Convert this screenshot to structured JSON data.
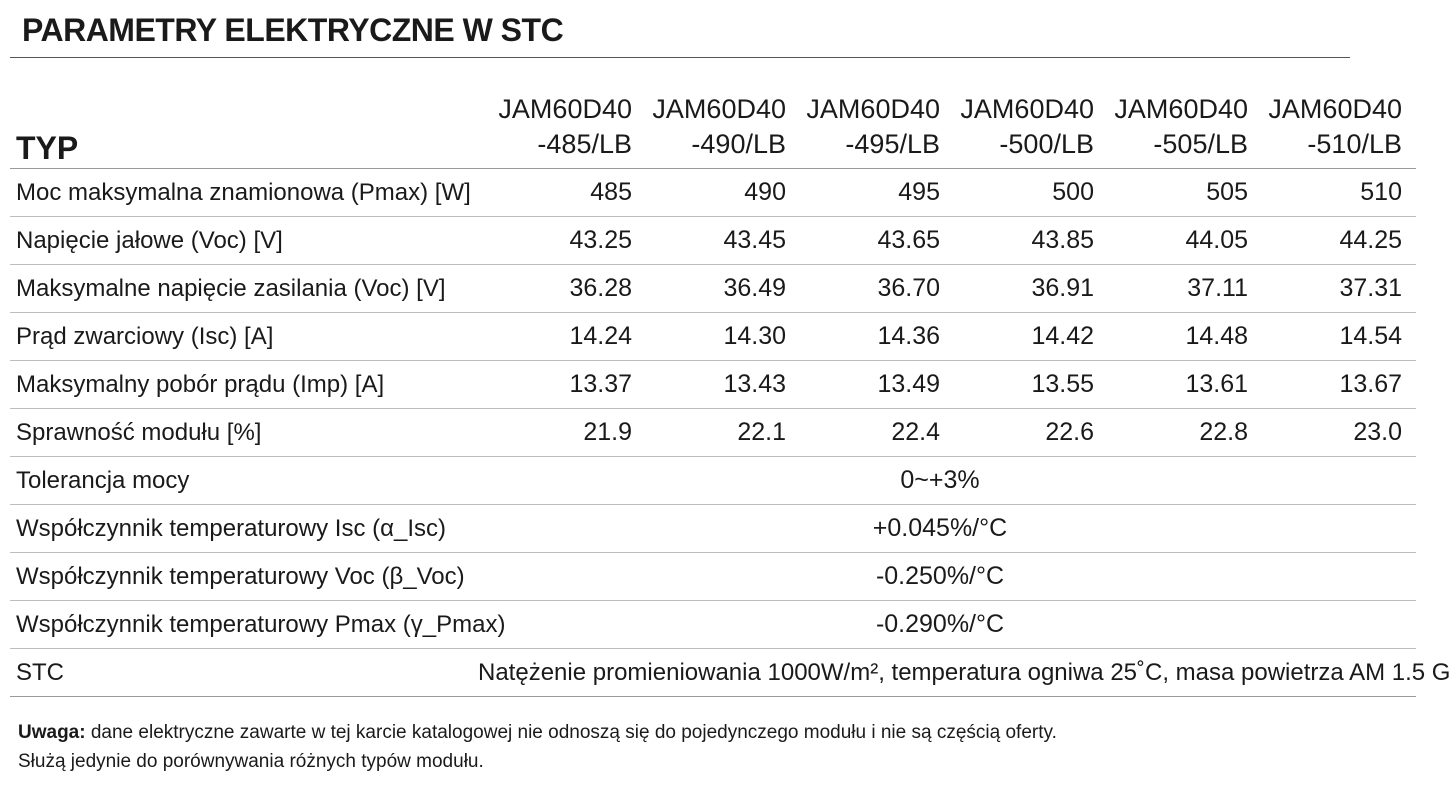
{
  "title": "PARAMETRY ELEKTRYCZNE W STC",
  "table": {
    "type_label": "TYP",
    "models": [
      {
        "line1": "JAM60D40",
        "line2": "-485/LB"
      },
      {
        "line1": "JAM60D40",
        "line2": "-490/LB"
      },
      {
        "line1": "JAM60D40",
        "line2": "-495/LB"
      },
      {
        "line1": "JAM60D40",
        "line2": "-500/LB"
      },
      {
        "line1": "JAM60D40",
        "line2": "-505/LB"
      },
      {
        "line1": "JAM60D40",
        "line2": "-510/LB"
      }
    ],
    "rows": [
      {
        "label": "Moc maksymalna znamionowa (Pmax) [W]",
        "values": [
          "485",
          "490",
          "495",
          "500",
          "505",
          "510"
        ]
      },
      {
        "label": "Napięcie jałowe (Voc) [V]",
        "values": [
          "43.25",
          "43.45",
          "43.65",
          "43.85",
          "44.05",
          "44.25"
        ]
      },
      {
        "label": "Maksymalne napięcie zasilania (Voc) [V]",
        "values": [
          "36.28",
          "36.49",
          "36.70",
          "36.91",
          "37.11",
          "37.31"
        ]
      },
      {
        "label": "Prąd zwarciowy  (Isc) [A]",
        "values": [
          "14.24",
          "14.30",
          "14.36",
          "14.42",
          "14.48",
          "14.54"
        ]
      },
      {
        "label": "Maksymalny pobór prądu (Imp) [A]",
        "values": [
          "13.37",
          "13.43",
          "13.49",
          "13.55",
          "13.61",
          "13.67"
        ]
      },
      {
        "label": "Sprawność modułu [%]",
        "values": [
          "21.9",
          "22.1",
          "22.4",
          "22.6",
          "22.8",
          "23.0"
        ]
      }
    ],
    "common_rows": [
      {
        "label": "Tolerancja mocy",
        "value": "0~+3%"
      },
      {
        "label": "Współczynnik temperaturowy Isc (α_Isc)",
        "value": "+0.045%/°C"
      },
      {
        "label": "Współczynnik temperaturowy Voc (β_Voc)",
        "value": "-0.250%/°C"
      },
      {
        "label": "Współczynnik temperaturowy Pmax (γ_Pmax)",
        "value": "-0.290%/°C"
      }
    ],
    "stc": {
      "label": "STC",
      "value": "Natężenie promieniowania 1000W/m², temperatura ogniwa 25˚C, masa powietrza AM 1.5 G"
    }
  },
  "note": {
    "bold": "Uwaga:",
    "line1": " dane elektryczne zawarte w tej karcie katalogowej nie odnoszą się do pojedynczego modułu i nie są częścią oferty.",
    "line2": "Służą jedynie do porównywania różnych typów modułu."
  }
}
